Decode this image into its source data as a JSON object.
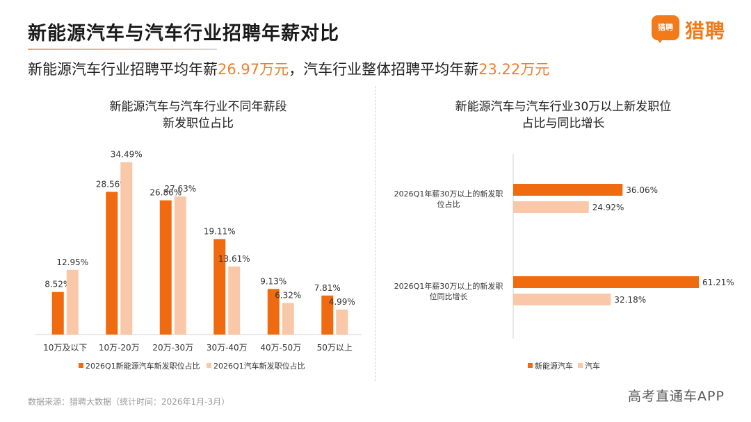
{
  "page": {
    "title": "新能源汽车与汽车行业招聘年薪对比",
    "subtitle_pre": "新能源汽车行业招聘平均年薪",
    "subtitle_v1": "26.97万元",
    "subtitle_mid": "，汽车行业整体招聘平均年薪",
    "subtitle_v2": "23.22万元",
    "source": "数据来源：猎聘大数据（统计时间：2026年1月-3月）",
    "watermark": "高考直通车APP"
  },
  "logo": {
    "badge": "猎聘",
    "text": "猎聘"
  },
  "colors": {
    "primary": "#f06a10",
    "secondary": "#f8c8a8",
    "accent": "#ef7e2e"
  },
  "chart_data": [
    {
      "type": "bar",
      "title_lines": [
        "新能源汽车与汽车行业不同年薪段",
        "新发职位占比"
      ],
      "categories": [
        "10万及以下",
        "10万-20万",
        "20万-30万",
        "30万-40万",
        "40万-50万",
        "50万以上"
      ],
      "series": [
        {
          "name": "2026Q1新能源汽车新发职位占比",
          "values": [
            8.52,
            28.56,
            26.86,
            19.11,
            9.13,
            7.81
          ]
        },
        {
          "name": "2026Q1汽车新发职位占比",
          "values": [
            12.95,
            34.49,
            27.63,
            13.61,
            6.32,
            4.99
          ]
        }
      ],
      "unit": "%",
      "ylim": [
        0,
        35
      ],
      "legend": "bottom",
      "grid": false
    },
    {
      "type": "bar",
      "orientation": "horizontal",
      "title_lines": [
        "新能源汽车与汽车行业30万以上新发职位",
        "占比与同比增长"
      ],
      "categories": [
        [
          "2026Q1年薪30万以上的新发职",
          "位占比"
        ],
        [
          "2026Q1年薪30万以上的新发职",
          "位同比增长"
        ]
      ],
      "series": [
        {
          "name": "新能源汽车",
          "values": [
            36.06,
            61.21
          ]
        },
        {
          "name": "汽车",
          "values": [
            24.92,
            32.18
          ]
        }
      ],
      "unit": "%",
      "xlim": [
        0,
        61.21
      ],
      "legend": "bottom",
      "grid": false
    }
  ]
}
